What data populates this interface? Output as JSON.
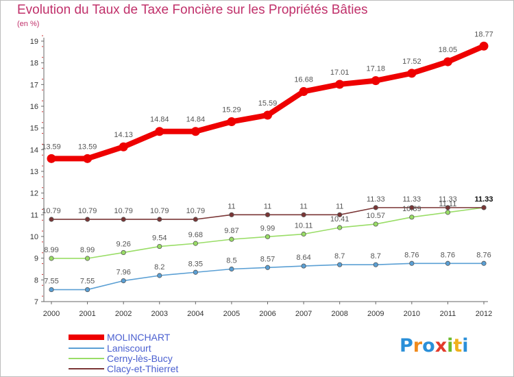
{
  "chart_title": "Evolution du Taux de Taxe Foncière sur les Propriétés Bâties",
  "unit_label": "(en %)",
  "brand": {
    "letters": [
      "P",
      "r",
      "o",
      "x",
      "i",
      "t",
      "i"
    ],
    "colors": [
      "#2a8fd8",
      "#f08a1c",
      "#2a8fd8",
      "#e23a2a",
      "#6cba2c",
      "#f0b01c",
      "#2a8fd8"
    ]
  },
  "chart_data": {
    "type": "line",
    "title": "Evolution du Taux de Taxe Foncière sur les Propriétés Bâties",
    "ylabel": "(en %)",
    "xlabel": "",
    "x": [
      "2000",
      "2001",
      "2002",
      "2003",
      "2004",
      "2005",
      "2006",
      "2007",
      "2008",
      "2009",
      "2010",
      "2011",
      "2012"
    ],
    "ylim": [
      7,
      19.5
    ],
    "yticks": [
      7,
      8,
      9,
      10,
      11,
      12,
      13,
      14,
      15,
      16,
      17,
      18,
      19
    ],
    "grid": false,
    "legend_position": "bottom-left",
    "series": [
      {
        "name": "MOLINCHART",
        "color": "#ee0000",
        "weight": "bold",
        "values": [
          13.59,
          13.59,
          14.13,
          14.84,
          14.84,
          15.29,
          15.59,
          16.68,
          17.01,
          17.18,
          17.52,
          18.05,
          18.77
        ],
        "labels": [
          "13.59",
          "13.59",
          "14.13",
          "14.84",
          "14.84",
          "15.29",
          "15.59",
          "16.68",
          "17.01",
          "17.18",
          "17.52",
          "18.05",
          "18.77"
        ]
      },
      {
        "name": "Laniscourt",
        "color": "#5a9fd4",
        "weight": "normal",
        "values": [
          7.55,
          7.55,
          7.96,
          8.2,
          8.35,
          8.5,
          8.57,
          8.64,
          8.7,
          8.7,
          8.76,
          8.76,
          8.76
        ],
        "labels": [
          "7.55",
          "7.55",
          "7.96",
          "8.2",
          "8.35",
          "8.5",
          "8.57",
          "8.64",
          "8.7",
          "8.7",
          "8.76",
          "8.76",
          "8.76"
        ]
      },
      {
        "name": "Cerny-lès-Bucy",
        "color": "#99dd66",
        "weight": "normal",
        "values": [
          8.99,
          8.99,
          9.26,
          9.54,
          9.68,
          9.87,
          9.99,
          10.11,
          10.41,
          10.57,
          10.89,
          11.11,
          11.33
        ],
        "labels": [
          "8.99",
          "8.99",
          "9.26",
          "9.54",
          "9.68",
          "9.87",
          "9.99",
          "10.11",
          "10.41",
          "10.57",
          "10.89",
          "11.11",
          "11.33"
        ]
      },
      {
        "name": "Clacy-et-Thierret",
        "color": "#7a3535",
        "weight": "normal",
        "values": [
          10.79,
          10.79,
          10.79,
          10.79,
          10.79,
          11,
          11,
          11,
          11,
          11.33,
          11.33,
          11.33,
          11.33
        ],
        "labels": [
          "10.79",
          "10.79",
          "10.79",
          "10.79",
          "10.79",
          "11",
          "11",
          "11",
          "11",
          "11.33",
          "11.33",
          "11.33",
          "11.33"
        ]
      }
    ]
  }
}
